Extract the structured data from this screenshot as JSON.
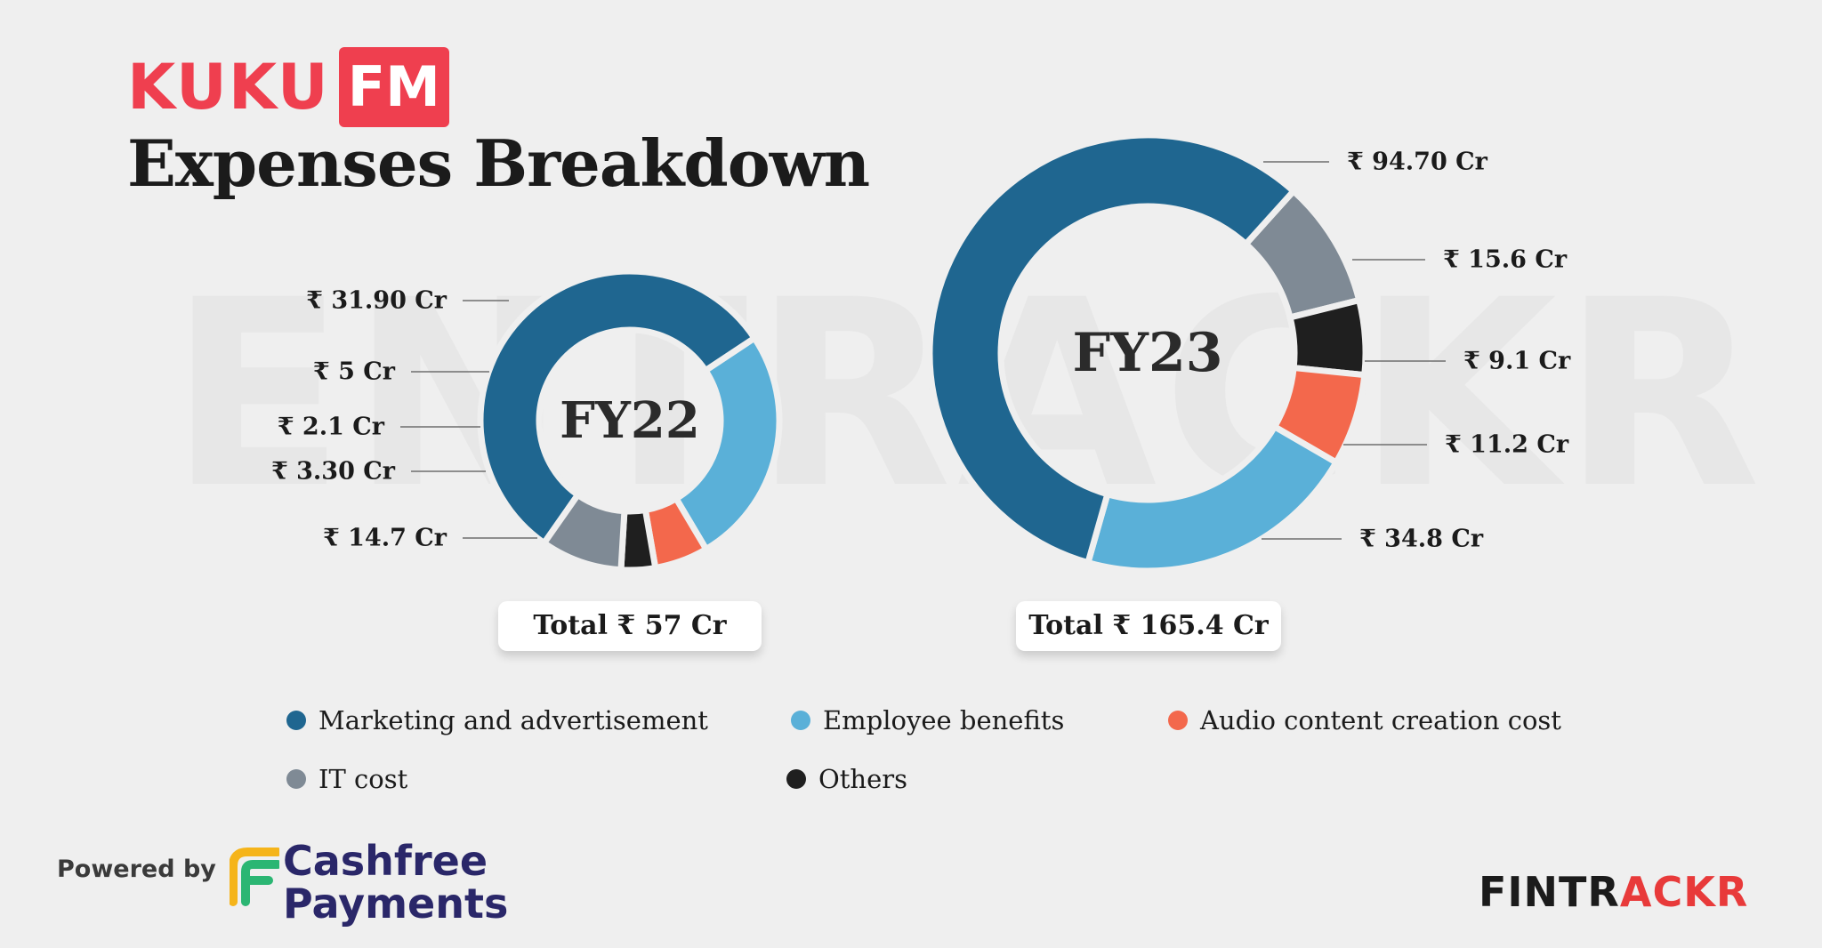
{
  "watermark": "ENTRACKR",
  "brand": {
    "part1": "KUKU",
    "part2": "FM"
  },
  "title": "Expenses Breakdown",
  "colors": {
    "marketing": "#1f6690",
    "it": "#7f8a95",
    "others": "#1f1f1f",
    "audio": "#f3684c",
    "employee": "#5ab0d8"
  },
  "chart_data": [
    {
      "type": "pie",
      "center_label": "FY22",
      "total_label": "Total ₹ 57 Cr",
      "slices": [
        {
          "category": "Marketing and advertisement",
          "value": 31.9,
          "label": "₹ 31.90 Cr",
          "color": "#1f6690"
        },
        {
          "category": "Employee benefits",
          "value": 14.7,
          "label": "₹ 14.7 Cr",
          "color": "#5ab0d8"
        },
        {
          "category": "Audio content creation cost",
          "value": 3.3,
          "label": "₹ 3.30 Cr",
          "color": "#f3684c"
        },
        {
          "category": "Others",
          "value": 2.1,
          "label": "₹ 2.1 Cr",
          "color": "#1f1f1f"
        },
        {
          "category": "IT cost",
          "value": 5,
          "label": "₹ 5 Cr",
          "color": "#7f8a95"
        }
      ]
    },
    {
      "type": "pie",
      "center_label": "FY23",
      "total_label": "Total ₹ 165.4 Cr",
      "slices": [
        {
          "category": "IT cost",
          "value": 15.6,
          "label": "₹ 15.6 Cr",
          "color": "#7f8a95"
        },
        {
          "category": "Others",
          "value": 9.1,
          "label": "₹ 9.1 Cr",
          "color": "#1f1f1f"
        },
        {
          "category": "Audio content creation cost",
          "value": 11.2,
          "label": "₹ 11.2 Cr",
          "color": "#f3684c"
        },
        {
          "category": "Employee benefits",
          "value": 34.8,
          "label": "₹ 34.8 Cr",
          "color": "#5ab0d8"
        },
        {
          "category": "Marketing and advertisement",
          "value": 94.7,
          "label": "₹ 94.70 Cr",
          "color": "#1f6690"
        }
      ]
    }
  ],
  "legend": [
    {
      "label": "Marketing and advertisement",
      "color": "#1f6690"
    },
    {
      "label": "Employee benefits",
      "color": "#5ab0d8"
    },
    {
      "label": "Audio content creation cost",
      "color": "#f3684c"
    },
    {
      "label": "IT cost",
      "color": "#7f8a95"
    },
    {
      "label": "Others",
      "color": "#1f1f1f"
    }
  ],
  "footer": {
    "powered_by": "Powered by",
    "sponsor_line1": "Cashfree",
    "sponsor_line2": "Payments",
    "fintrackr_a": "FINTR",
    "fintrackr_b": "ACKR"
  }
}
